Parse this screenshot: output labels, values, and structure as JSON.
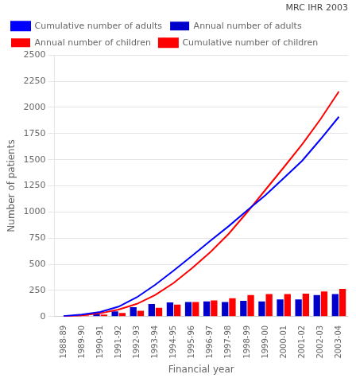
{
  "chart_data": {
    "type": "bar",
    "categories": [
      "1988-89",
      "1989-90",
      "1990-91",
      "1991-92",
      "1992-93",
      "1993-94",
      "1994-95",
      "1995-96",
      "1996-97",
      "1997-98",
      "1998-99",
      "1999-00",
      "2000-01",
      "2001-02",
      "2002-03",
      "2003-04"
    ],
    "series": [
      {
        "name": "Cumulative number of adults",
        "type": "line",
        "color": "#0000FF",
        "values": [
          5,
          20,
          45,
          95,
          185,
          305,
          440,
          580,
          725,
          865,
          1015,
          1160,
          1325,
          1490,
          1695,
          1910
        ]
      },
      {
        "name": "Annual number of adults",
        "type": "bar",
        "color": "#0000CC",
        "values": [
          5,
          15,
          25,
          50,
          90,
          120,
          135,
          140,
          145,
          140,
          150,
          145,
          165,
          165,
          205,
          215
        ]
      },
      {
        "name": "Annual number of children",
        "type": "bar",
        "color": "#FF0000",
        "values": [
          2,
          10,
          20,
          35,
          55,
          85,
          115,
          140,
          155,
          175,
          205,
          215,
          215,
          220,
          240,
          265
        ]
      },
      {
        "name": "Cumulative number of children",
        "type": "line",
        "color": "#FF0000",
        "values": [
          2,
          12,
          32,
          67,
          122,
          207,
          322,
          462,
          617,
          792,
          997,
          1212,
          1427,
          1647,
          1887,
          2152
        ]
      }
    ],
    "xlabel": "Financial year",
    "ylabel": "Number of patients",
    "annotations": [
      "MRC IHR 2003"
    ],
    "ylim": [
      0,
      2500
    ],
    "yticks": [
      0,
      250,
      500,
      750,
      1000,
      1250,
      1500,
      1750,
      2000,
      2250,
      2500
    ],
    "grid": true,
    "legend": "upper left"
  }
}
